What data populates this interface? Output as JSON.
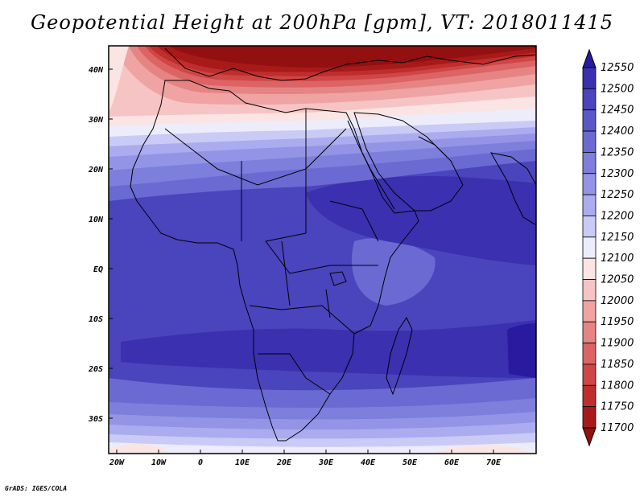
{
  "title": "Geopotential Height at 200hPa [gpm], VT: 2018011415",
  "footer": "GrADS: IGES/COLA",
  "map": {
    "variable": "Geopotential Height",
    "level": "200hPa",
    "units": "gpm",
    "valid_time": "2018011415",
    "lon_range": [
      -22,
      80
    ],
    "lat_range": [
      -37,
      45
    ],
    "x_ticks": [
      "20W",
      "10W",
      "0",
      "10E",
      "20E",
      "30E",
      "40E",
      "50E",
      "60E",
      "70E"
    ],
    "y_ticks": [
      "40N",
      "30N",
      "20N",
      "10N",
      "EQ",
      "10S",
      "20S",
      "30S"
    ],
    "colorbar": {
      "levels": [
        "12550",
        "12500",
        "12450",
        "12400",
        "12350",
        "12300",
        "12250",
        "12200",
        "12150",
        "12100",
        "12050",
        "12000",
        "11950",
        "11900",
        "11850",
        "11800",
        "11750",
        "11700"
      ],
      "colors": [
        "#2a1aa0",
        "#3a30b0",
        "#4a44bd",
        "#5a58c8",
        "#6a6ad2",
        "#7e7edc",
        "#9494e6",
        "#ababef",
        "#cacaf6",
        "#ececfb",
        "#fbe4e4",
        "#f6c4c4",
        "#efa3a3",
        "#e68484",
        "#dc6464",
        "#cf4646",
        "#c02d2d",
        "#a81a1a",
        "#931010"
      ]
    },
    "regions": [
      {
        "name": "north-high-red",
        "color": "#a81a1a"
      },
      {
        "name": "subtropical-transition",
        "color": "#fbe4e4"
      },
      {
        "name": "tropical-blue",
        "color": "#4a44bd"
      }
    ]
  }
}
